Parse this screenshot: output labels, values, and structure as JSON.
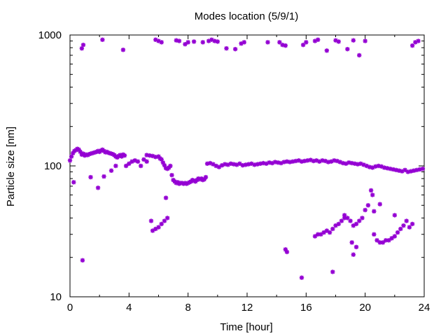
{
  "chart_data": {
    "type": "scatter",
    "title": "Modes location (5/9/1)",
    "xlabel": "Time [hour]",
    "ylabel": "Particle size [nm]",
    "xlim": [
      0,
      24
    ],
    "ylim": [
      10,
      1000
    ],
    "yscale": "log",
    "x_ticks": [
      0,
      4,
      8,
      12,
      16,
      20,
      24
    ],
    "x_tick_labels": [
      "0",
      "4",
      "8",
      "12",
      "16",
      "20",
      "24"
    ],
    "y_ticks": [
      10,
      100,
      1000
    ],
    "y_tick_labels": [
      "10",
      "100",
      "1000"
    ],
    "grid": false,
    "marker_color": "#9400d3",
    "marker_icon": "asterisk-star",
    "series": [
      {
        "points": [
          [
            0.0,
            110
          ],
          [
            0.1,
            118
          ],
          [
            0.2,
            125
          ],
          [
            0.3,
            130
          ],
          [
            0.4,
            132
          ],
          [
            0.5,
            135
          ],
          [
            0.6,
            133
          ],
          [
            0.7,
            128
          ],
          [
            0.8,
            122
          ],
          [
            0.9,
            124
          ],
          [
            1.0,
            120
          ],
          [
            1.1,
            122
          ],
          [
            1.2,
            121
          ],
          [
            1.3,
            123
          ],
          [
            1.4,
            124
          ],
          [
            1.5,
            125
          ],
          [
            1.6,
            126
          ],
          [
            1.7,
            127
          ],
          [
            1.8,
            128
          ],
          [
            1.9,
            130
          ],
          [
            2.0,
            128
          ],
          [
            2.1,
            131
          ],
          [
            2.2,
            133
          ],
          [
            2.3,
            130
          ],
          [
            2.4,
            127
          ],
          [
            2.5,
            128
          ],
          [
            2.6,
            126
          ],
          [
            2.7,
            125
          ],
          [
            2.8,
            124
          ],
          [
            2.9,
            123
          ],
          [
            3.0,
            121
          ],
          [
            3.1,
            118
          ],
          [
            3.2,
            116
          ],
          [
            3.3,
            119
          ],
          [
            3.4,
            121
          ],
          [
            3.5,
            118
          ],
          [
            3.6,
            122
          ],
          [
            3.7,
            120
          ],
          [
            5.2,
            121
          ],
          [
            5.4,
            120
          ],
          [
            5.6,
            119
          ],
          [
            5.8,
            117
          ],
          [
            6.0,
            118
          ],
          [
            6.1,
            114
          ],
          [
            6.2,
            112
          ],
          [
            6.3,
            106
          ],
          [
            6.4,
            101
          ],
          [
            6.5,
            96
          ],
          [
            6.6,
            95
          ],
          [
            6.7,
            97
          ],
          [
            6.8,
            100
          ],
          [
            6.9,
            85
          ],
          [
            7.0,
            78
          ],
          [
            7.1,
            76
          ],
          [
            7.2,
            74
          ],
          [
            7.3,
            75
          ],
          [
            7.4,
            73
          ],
          [
            7.5,
            74
          ],
          [
            7.6,
            74
          ],
          [
            7.7,
            73
          ],
          [
            7.8,
            74
          ],
          [
            7.9,
            73
          ],
          [
            8.0,
            74
          ],
          [
            8.1,
            75
          ],
          [
            8.2,
            76
          ],
          [
            8.3,
            78
          ],
          [
            8.4,
            77
          ],
          [
            8.5,
            76
          ],
          [
            8.6,
            78
          ],
          [
            8.7,
            80
          ],
          [
            8.8,
            79
          ],
          [
            8.9,
            80
          ],
          [
            9.0,
            78
          ],
          [
            9.1,
            79
          ],
          [
            9.2,
            82
          ],
          [
            9.3,
            104
          ],
          [
            9.5,
            105
          ],
          [
            9.7,
            103
          ],
          [
            9.9,
            100
          ],
          [
            10.1,
            98
          ],
          [
            10.3,
            101
          ],
          [
            10.5,
            103
          ],
          [
            10.7,
            102
          ],
          [
            10.9,
            104
          ],
          [
            11.1,
            103
          ],
          [
            11.3,
            102
          ],
          [
            11.5,
            104
          ],
          [
            11.7,
            101
          ],
          [
            11.9,
            102
          ],
          [
            12.1,
            103
          ],
          [
            12.3,
            104
          ],
          [
            12.5,
            102
          ],
          [
            12.7,
            103
          ],
          [
            12.9,
            104
          ],
          [
            13.1,
            105
          ],
          [
            13.3,
            104
          ],
          [
            13.5,
            106
          ],
          [
            13.7,
            105
          ],
          [
            13.9,
            107
          ],
          [
            14.1,
            106
          ],
          [
            14.3,
            105
          ],
          [
            14.5,
            107
          ],
          [
            14.7,
            108
          ],
          [
            14.9,
            107
          ],
          [
            15.1,
            108
          ],
          [
            15.3,
            109
          ],
          [
            15.5,
            110
          ],
          [
            15.7,
            108
          ],
          [
            15.9,
            109
          ],
          [
            16.1,
            110
          ],
          [
            16.3,
            111
          ],
          [
            16.5,
            109
          ],
          [
            16.7,
            110
          ],
          [
            16.9,
            108
          ],
          [
            17.1,
            110
          ],
          [
            17.3,
            109
          ],
          [
            17.5,
            107
          ],
          [
            17.7,
            108
          ],
          [
            17.9,
            110
          ],
          [
            18.1,
            109
          ],
          [
            18.3,
            107
          ],
          [
            18.5,
            105
          ],
          [
            18.7,
            104
          ],
          [
            18.9,
            106
          ],
          [
            19.1,
            105
          ],
          [
            19.3,
            104
          ],
          [
            19.5,
            103
          ],
          [
            19.7,
            104
          ],
          [
            19.9,
            102
          ],
          [
            20.1,
            100
          ],
          [
            20.3,
            98
          ],
          [
            20.5,
            97
          ],
          [
            20.7,
            99
          ],
          [
            20.9,
            100
          ],
          [
            21.1,
            99
          ],
          [
            21.3,
            97
          ],
          [
            21.5,
            96
          ],
          [
            21.7,
            95
          ],
          [
            21.9,
            94
          ],
          [
            22.1,
            93
          ],
          [
            22.3,
            92
          ],
          [
            22.5,
            91
          ],
          [
            22.7,
            93
          ],
          [
            22.9,
            90
          ],
          [
            23.1,
            91
          ],
          [
            23.3,
            92
          ],
          [
            23.5,
            93
          ],
          [
            23.7,
            94
          ],
          [
            23.9,
            95
          ],
          [
            3.8,
            100
          ],
          [
            4.0,
            104
          ],
          [
            4.2,
            108
          ],
          [
            4.4,
            110
          ],
          [
            4.6,
            108
          ],
          [
            4.8,
            100
          ],
          [
            5.0,
            112
          ],
          [
            5.2,
            108
          ],
          [
            0.25,
            75
          ],
          [
            0.85,
            19
          ],
          [
            1.4,
            82
          ],
          [
            1.9,
            68
          ],
          [
            2.3,
            83
          ],
          [
            2.8,
            92
          ],
          [
            3.1,
            100
          ],
          [
            16.6,
            29
          ],
          [
            16.8,
            30
          ],
          [
            17.0,
            30
          ],
          [
            17.2,
            31
          ],
          [
            17.4,
            32
          ],
          [
            17.6,
            31
          ],
          [
            17.8,
            33
          ],
          [
            18.0,
            35
          ],
          [
            18.2,
            36
          ],
          [
            18.4,
            38
          ],
          [
            18.6,
            42
          ],
          [
            18.8,
            40
          ],
          [
            19.0,
            38
          ],
          [
            19.2,
            35
          ],
          [
            19.4,
            36
          ],
          [
            19.6,
            38
          ],
          [
            19.8,
            40
          ],
          [
            20.0,
            46
          ],
          [
            20.2,
            50
          ],
          [
            20.4,
            65
          ],
          [
            20.5,
            60
          ],
          [
            20.6,
            30
          ],
          [
            20.8,
            27
          ],
          [
            21.0,
            26
          ],
          [
            21.2,
            26
          ],
          [
            21.4,
            27
          ],
          [
            21.6,
            27
          ],
          [
            21.8,
            28
          ],
          [
            22.0,
            29
          ],
          [
            22.2,
            31
          ],
          [
            22.4,
            33
          ],
          [
            22.6,
            35
          ],
          [
            22.8,
            38
          ],
          [
            23.0,
            34
          ],
          [
            23.2,
            36
          ],
          [
            5.6,
            32
          ],
          [
            5.8,
            33
          ],
          [
            6.0,
            34
          ],
          [
            6.2,
            36
          ],
          [
            6.4,
            38
          ],
          [
            6.6,
            40
          ],
          [
            6.5,
            57
          ],
          [
            5.5,
            38
          ],
          [
            14.6,
            23
          ],
          [
            14.7,
            22
          ],
          [
            15.7,
            14
          ],
          [
            17.8,
            15.5
          ],
          [
            18.6,
            40
          ],
          [
            19.1,
            26
          ],
          [
            19.2,
            21
          ],
          [
            19.4,
            24
          ],
          [
            20.6,
            45
          ],
          [
            21.0,
            51
          ],
          [
            22.0,
            42
          ],
          [
            0.8,
            790
          ],
          [
            0.9,
            840
          ],
          [
            2.2,
            920
          ],
          [
            3.6,
            770
          ],
          [
            5.8,
            920
          ],
          [
            6.0,
            900
          ],
          [
            6.2,
            880
          ],
          [
            7.2,
            910
          ],
          [
            7.4,
            900
          ],
          [
            7.8,
            850
          ],
          [
            8.0,
            880
          ],
          [
            8.4,
            890
          ],
          [
            9.0,
            880
          ],
          [
            9.4,
            900
          ],
          [
            9.6,
            920
          ],
          [
            9.8,
            900
          ],
          [
            10.0,
            890
          ],
          [
            10.6,
            790
          ],
          [
            11.2,
            780
          ],
          [
            11.6,
            860
          ],
          [
            11.8,
            880
          ],
          [
            13.4,
            880
          ],
          [
            14.2,
            880
          ],
          [
            14.4,
            840
          ],
          [
            14.6,
            830
          ],
          [
            15.8,
            840
          ],
          [
            16.0,
            880
          ],
          [
            16.6,
            900
          ],
          [
            16.8,
            920
          ],
          [
            17.4,
            760
          ],
          [
            18.0,
            910
          ],
          [
            18.2,
            890
          ],
          [
            18.8,
            780
          ],
          [
            19.2,
            910
          ],
          [
            19.6,
            700
          ],
          [
            20.0,
            900
          ],
          [
            23.2,
            830
          ],
          [
            23.4,
            880
          ],
          [
            23.6,
            900
          ]
        ]
      }
    ]
  }
}
